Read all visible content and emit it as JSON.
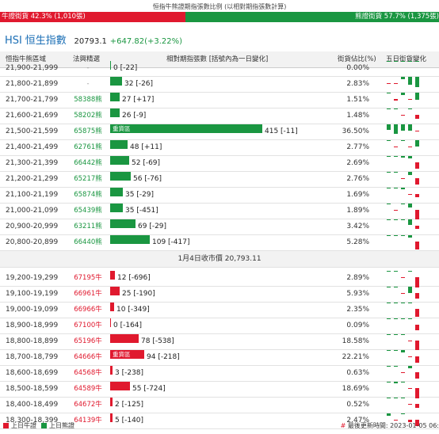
{
  "top": {
    "title": "恒指牛熊證期指張數比例 (以相對期指張數計算)",
    "bull_label": "牛證街貨 42.3% (1,010張)",
    "bear_label": "熊證街貨 57.7% (1,375張)",
    "bull_pct": 42.3,
    "bear_pct": 57.7
  },
  "hsi": {
    "code": "HSI",
    "name": "恒生指數",
    "price": "20793.1",
    "change": "+647.82(+3.22%)"
  },
  "headers": {
    "range": "恒指牛熊區域",
    "knockout": "法興精選",
    "contracts": "相對期指張數 [括號內為一日變化]",
    "pct": "街貨佔比(%)",
    "five_day": "五日街貨變化"
  },
  "bear_rows": [
    {
      "range": "21,900-21,999",
      "ko": "-",
      "type": "bear",
      "contracts": 0,
      "change": "-22",
      "label": "0 [-22]",
      "heavy": false,
      "pct": "0.00%",
      "spark": [
        0,
        0,
        0,
        0,
        0
      ]
    },
    {
      "range": "21,800-21,899",
      "ko": "-",
      "type": "bear",
      "contracts": 32,
      "change": "-26",
      "label": "32 [-26]",
      "heavy": false,
      "pct": "2.83%",
      "spark": [
        -0.1,
        -0.1,
        0.2,
        0.8,
        1.0
      ]
    },
    {
      "range": "21,700-21,799",
      "ko": "58388熊",
      "type": "bear",
      "contracts": 27,
      "change": "+17",
      "label": "27 [+17]",
      "heavy": false,
      "pct": "1.51%",
      "spark": [
        0,
        -0.15,
        0.2,
        -0.1,
        0.7
      ]
    },
    {
      "range": "21,600-21,699",
      "ko": "58202熊",
      "type": "bear",
      "contracts": 26,
      "change": "-9",
      "label": "26 [-9]",
      "heavy": false,
      "pct": "1.48%",
      "spark": [
        0,
        0.1,
        -0.1,
        0.1,
        -0.4
      ]
    },
    {
      "range": "21,500-21,599",
      "ko": "65875熊",
      "type": "bear",
      "contracts": 415,
      "change": "-11",
      "label": "415 [-11]",
      "heavy": true,
      "heavy_label": "重貨區",
      "pct": "36.50%",
      "spark": [
        0.5,
        0.9,
        0.6,
        0.6,
        -0.1
      ]
    },
    {
      "range": "21,400-21,499",
      "ko": "62761熊",
      "type": "bear",
      "contracts": 48,
      "change": "+11",
      "label": "48 [+11]",
      "heavy": false,
      "pct": "2.77%",
      "spark": [
        0,
        -0.1,
        0.1,
        -0.1,
        0.6
      ]
    },
    {
      "range": "21,300-21,399",
      "ko": "66442熊",
      "type": "bear",
      "contracts": 52,
      "change": "-69",
      "label": "52 [-69]",
      "heavy": false,
      "pct": "2.69%",
      "spark": [
        0,
        0.1,
        0.15,
        0.2,
        -0.6
      ]
    },
    {
      "range": "21,200-21,299",
      "ko": "65217熊",
      "type": "bear",
      "contracts": 56,
      "change": "-76",
      "label": "56 [-76]",
      "heavy": false,
      "pct": "2.76%",
      "spark": [
        0,
        0.1,
        -0.1,
        0.3,
        -0.6
      ]
    },
    {
      "range": "21,100-21,199",
      "ko": "65874熊",
      "type": "bear",
      "contracts": 35,
      "change": "-29",
      "label": "35 [-29]",
      "heavy": false,
      "pct": "1.69%",
      "spark": [
        0,
        0.1,
        0.15,
        -0.1,
        -0.3
      ]
    },
    {
      "range": "21,000-21,099",
      "ko": "65439熊",
      "type": "bear",
      "contracts": 35,
      "change": "-451",
      "label": "35 [-451]",
      "heavy": false,
      "pct": "1.89%",
      "spark": [
        0,
        -0.1,
        0.1,
        0.4,
        -0.9
      ]
    },
    {
      "range": "20,900-20,999",
      "ko": "63211熊",
      "type": "bear",
      "contracts": 69,
      "change": "-29",
      "label": "69 [-29]",
      "heavy": false,
      "pct": "3.42%",
      "spark": [
        0,
        0,
        0.1,
        0.5,
        -0.3
      ]
    },
    {
      "range": "20,800-20,899",
      "ko": "66440熊",
      "type": "bear",
      "contracts": 109,
      "change": "-417",
      "label": "109 [-417]",
      "heavy": false,
      "pct": "5.28%",
      "spark": [
        0,
        0.1,
        0.1,
        0.2,
        -0.8
      ]
    }
  ],
  "separator": "1月4日收市價 20,793.11",
  "bull_rows": [
    {
      "range": "19,200-19,299",
      "ko": "67195牛",
      "type": "bull",
      "contracts": 12,
      "change": "-696",
      "label": "12 [-696]",
      "heavy": false,
      "pct": "2.89%",
      "spark": [
        0.1,
        0.1,
        -0.1,
        0.1,
        -1.0
      ]
    },
    {
      "range": "19,100-19,199",
      "ko": "66961牛",
      "type": "bull",
      "contracts": 25,
      "change": "-190",
      "label": "25 [-190]",
      "heavy": false,
      "pct": "5.93%",
      "spark": [
        0,
        0.1,
        -0.1,
        0.6,
        -0.5
      ]
    },
    {
      "range": "19,000-19,099",
      "ko": "66966牛",
      "type": "bull",
      "contracts": 10,
      "change": "-349",
      "label": "10 [-349]",
      "heavy": false,
      "pct": "2.35%",
      "spark": [
        0,
        0,
        0,
        0,
        -0.8
      ]
    },
    {
      "range": "18,900-18,999",
      "ko": "67100牛",
      "type": "bull",
      "contracts": 0,
      "change": "-164",
      "label": "0 [-164]",
      "heavy": false,
      "pct": "0.09%",
      "spark": [
        0,
        0,
        0,
        0,
        -0.5
      ]
    },
    {
      "range": "18,800-18,899",
      "ko": "65196牛",
      "type": "bull",
      "contracts": 78,
      "change": "-538",
      "label": "78 [-538]",
      "heavy": false,
      "pct": "18.58%",
      "spark": [
        0,
        0.1,
        0.1,
        -0.1,
        -0.9
      ]
    },
    {
      "range": "18,700-18,799",
      "ko": "64666牛",
      "type": "bull",
      "contracts": 94,
      "change": "-218",
      "label": "94 [-218]",
      "heavy": true,
      "heavy_label": "重貨區",
      "pct": "22.21%",
      "spark": [
        0,
        0,
        0.2,
        -0.1,
        -0.6
      ]
    },
    {
      "range": "18,600-18,699",
      "ko": "64568牛",
      "type": "bull",
      "contracts": 3,
      "change": "-238",
      "label": "3 [-238]",
      "heavy": false,
      "pct": "0.63%",
      "spark": [
        0,
        0.1,
        -0.1,
        0.2,
        -0.6
      ]
    },
    {
      "range": "18,500-18,599",
      "ko": "64589牛",
      "type": "bull",
      "contracts": 55,
      "change": "-724",
      "label": "55 [-724]",
      "heavy": false,
      "pct": "18.69%",
      "spark": [
        0,
        0.15,
        0.1,
        -0.1,
        -1.0
      ]
    },
    {
      "range": "18,400-18,499",
      "ko": "64672牛",
      "type": "bull",
      "contracts": 2,
      "change": "-125",
      "label": "2 [-125]",
      "heavy": false,
      "pct": "0.52%",
      "spark": [
        0,
        0.1,
        0.1,
        -0.1,
        -0.4
      ]
    },
    {
      "range": "18,300-18,399",
      "ko": "64139牛",
      "type": "bull",
      "contracts": 5,
      "change": "-140",
      "label": "5 [-140]",
      "heavy": false,
      "pct": "2.47%",
      "spark": [
        0.2,
        -0.1,
        0.1,
        -0.2,
        -0.6
      ]
    }
  ],
  "legend": {
    "bull": "上日牛證",
    "bear": "上日熊證"
  },
  "update": {
    "hash": "#",
    "text": "最後更新時間: 2023-01-05 06:"
  },
  "colors": {
    "bull": "#e0192e",
    "bear": "#1a9641"
  }
}
